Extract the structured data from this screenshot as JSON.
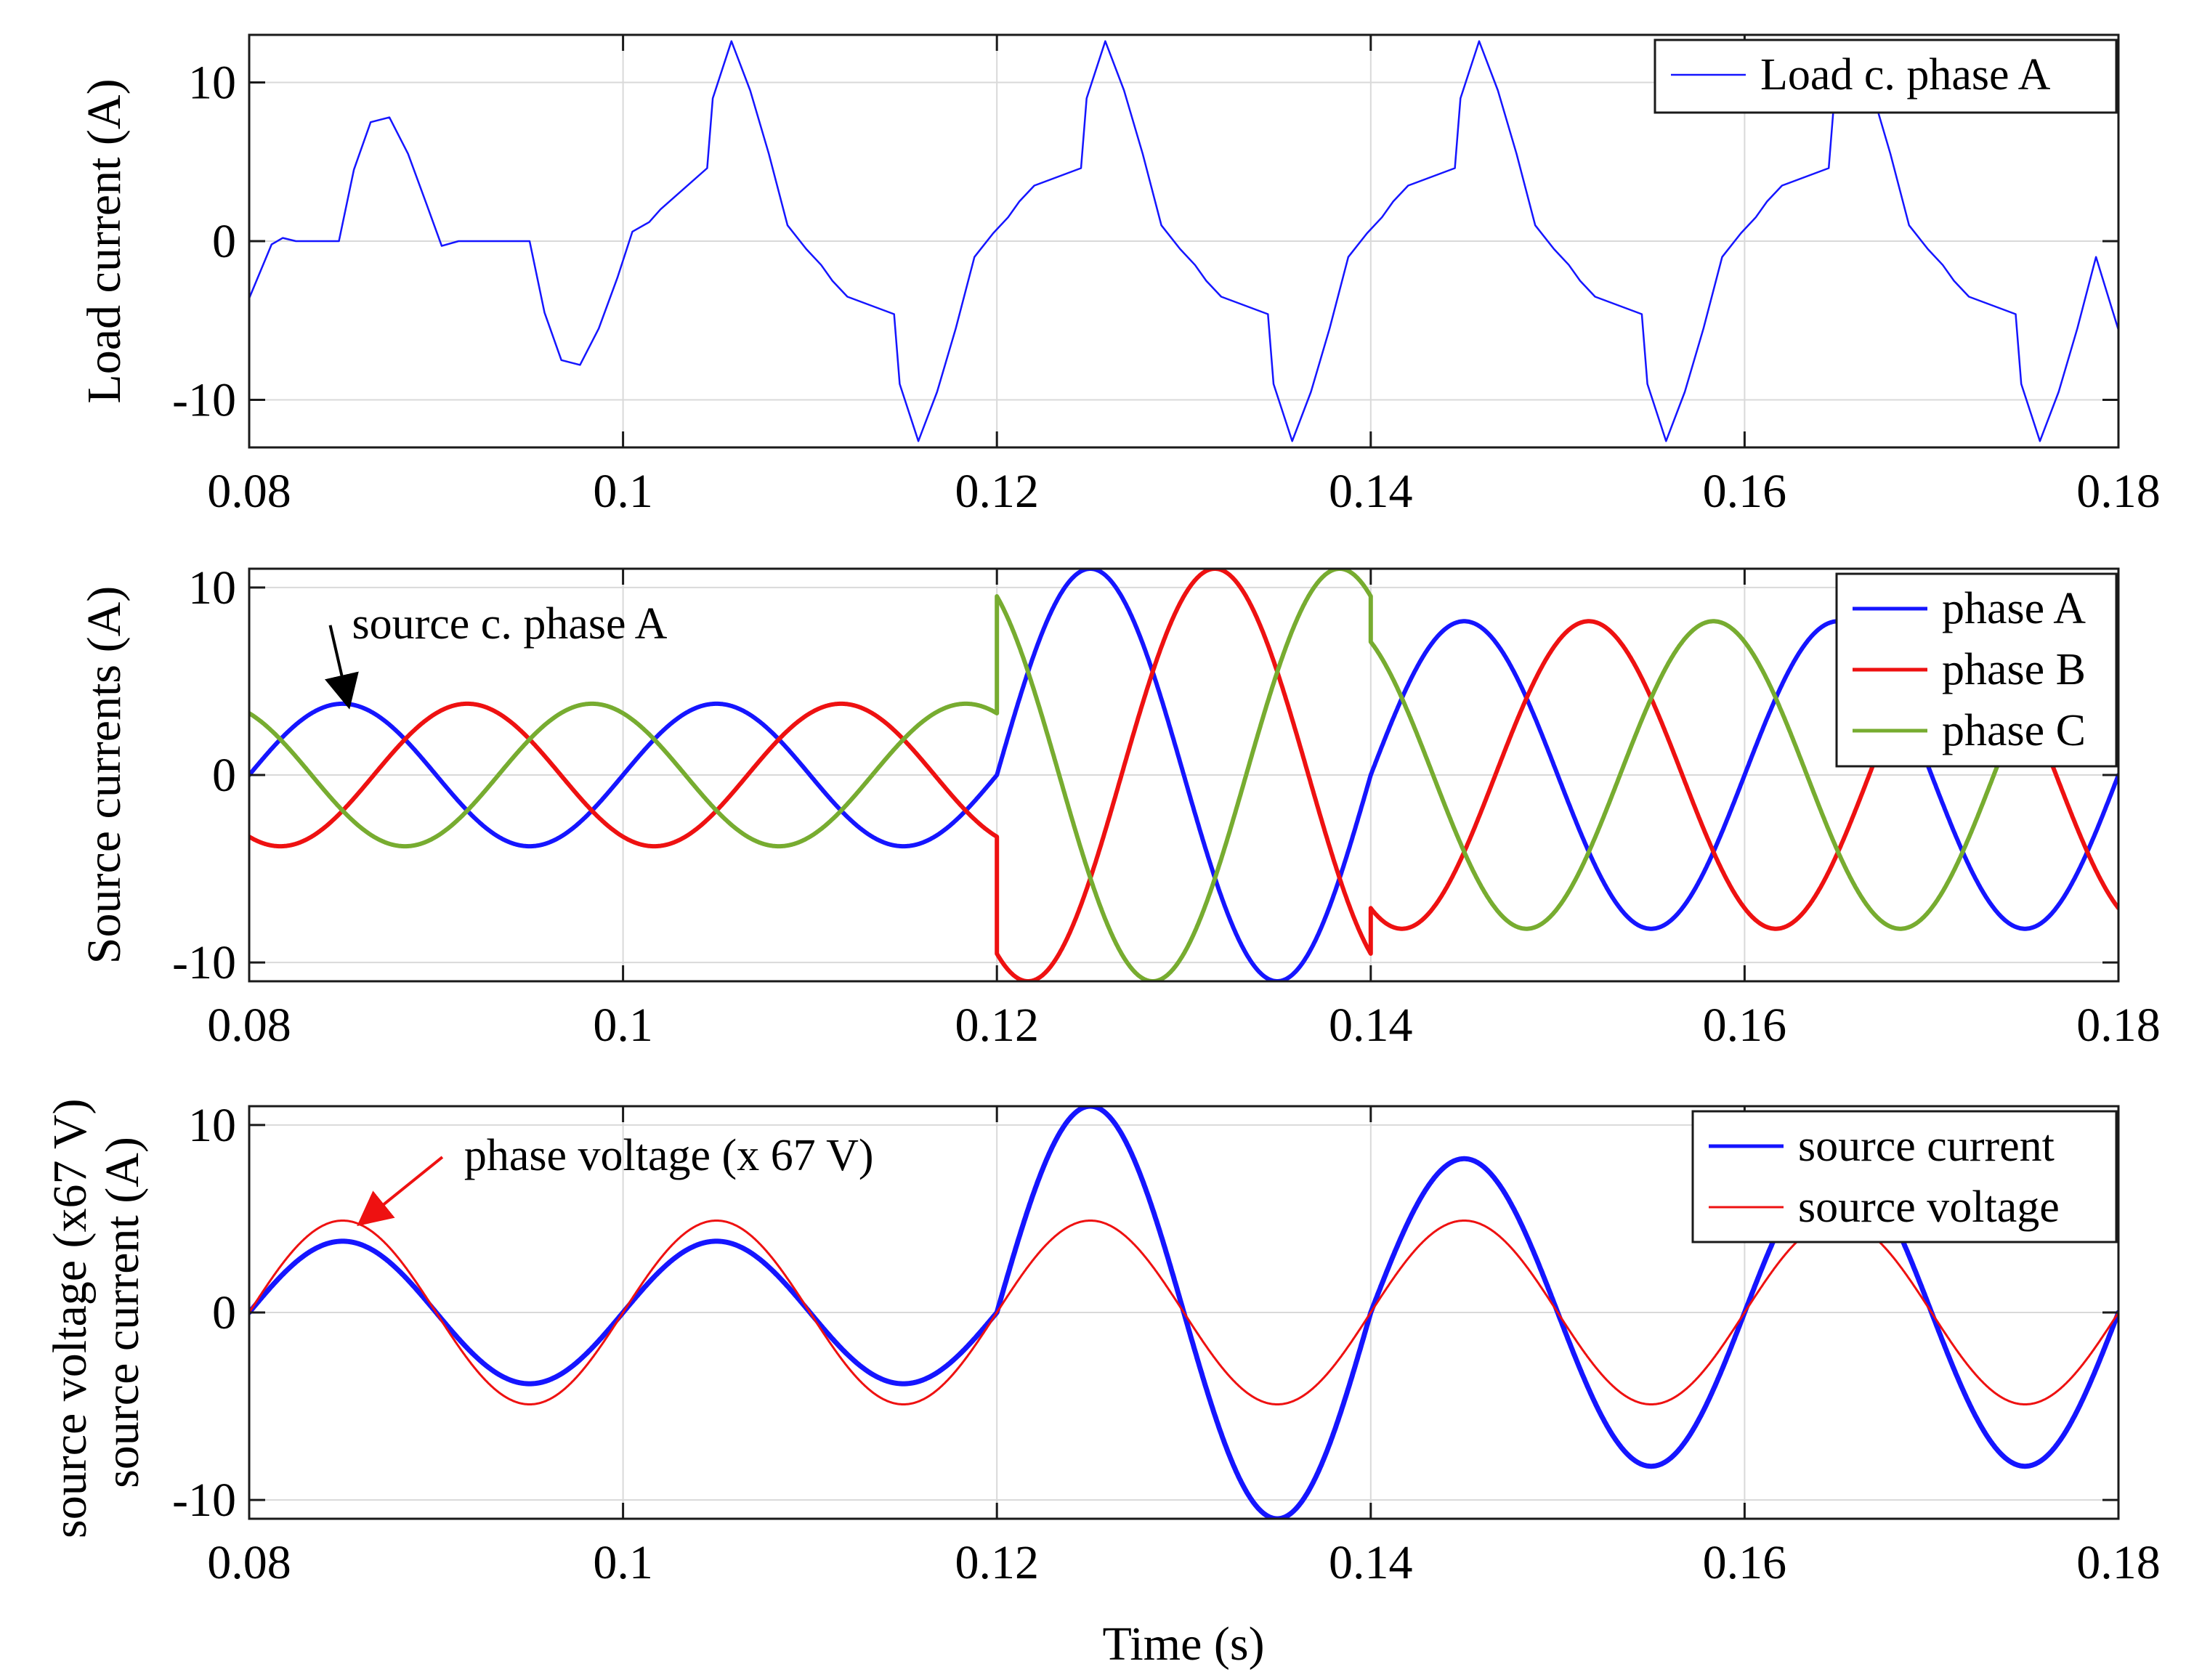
{
  "figure": {
    "xlabel": "Time (s)"
  },
  "chart_data": [
    {
      "type": "line",
      "ylabel": "Load current (A)",
      "xlim": [
        0.08,
        0.18
      ],
      "ylim": [
        -13,
        13
      ],
      "xticks": [
        0.08,
        0.1,
        0.12,
        0.14,
        0.16,
        0.18
      ],
      "xtick_labels": [
        "0.08",
        "0.1",
        "0.12",
        "0.14",
        "0.16",
        "0.18"
      ],
      "yticks": [
        -10,
        0,
        10
      ],
      "ytick_labels": [
        "-10",
        "0",
        "10"
      ],
      "grid": true,
      "legend_position": "top-right",
      "series": [
        {
          "name": "Load c. phase A",
          "color": "#1515ff",
          "line_width": 2.5,
          "x": [
            0.08,
            0.0812,
            0.0818,
            0.0825,
            0.0848,
            0.0856,
            0.0865,
            0.0875,
            0.0885,
            0.0895,
            0.0903,
            0.0912,
            0.092,
            0.0926,
            0.095,
            0.0958,
            0.0967,
            0.0977,
            0.0987,
            0.0997,
            0.1005,
            0.1014,
            0.102,
            0.1045,
            0.1048,
            0.1058,
            0.1068,
            0.1078,
            0.1088,
            0.1098,
            0.1106,
            0.1112,
            0.112,
            0.1145,
            0.1148,
            0.1158,
            0.1168,
            0.1178,
            0.1188,
            0.1198,
            0.1206,
            0.1212,
            0.122,
            0.1245,
            0.1248,
            0.1258,
            0.1268,
            0.1278,
            0.1288,
            0.1298,
            0.1306,
            0.1312,
            0.132,
            0.1345,
            0.1348,
            0.1358,
            0.1368,
            0.1378,
            0.1388,
            0.1398,
            0.1406,
            0.1412,
            0.142,
            0.1445,
            0.1448,
            0.1458,
            0.1468,
            0.1478,
            0.1488,
            0.1498,
            0.1506,
            0.1512,
            0.152,
            0.1545,
            0.1548,
            0.1558,
            0.1568,
            0.1578,
            0.1588,
            0.1598,
            0.1606,
            0.1612,
            0.162,
            0.1645,
            0.1648,
            0.1658,
            0.1668,
            0.1678,
            0.1688,
            0.1698,
            0.1706,
            0.1712,
            0.172,
            0.1745,
            0.1748,
            0.1758,
            0.1768,
            0.1778,
            0.1788,
            0.18
          ],
          "y": [
            -3.6,
            -0.2,
            0.2,
            0.0,
            0.0,
            4.5,
            7.5,
            7.8,
            5.5,
            2.3,
            -0.3,
            0.0,
            0.0,
            0.0,
            0.0,
            -4.5,
            -7.5,
            -7.8,
            -5.5,
            -2.3,
            0.6,
            1.2,
            2.0,
            4.6,
            9.0,
            12.6,
            9.5,
            5.5,
            1.0,
            -0.5,
            -1.5,
            -2.5,
            -3.5,
            -4.6,
            -9.0,
            -12.6,
            -9.5,
            -5.5,
            -1.0,
            0.5,
            1.5,
            2.5,
            3.5,
            4.6,
            9.0,
            12.6,
            9.5,
            5.5,
            1.0,
            -0.5,
            -1.5,
            -2.5,
            -3.5,
            -4.6,
            -9.0,
            -12.6,
            -9.5,
            -5.5,
            -1.0,
            0.5,
            1.5,
            2.5,
            3.5,
            4.6,
            9.0,
            12.6,
            9.5,
            5.5,
            1.0,
            -0.5,
            -1.5,
            -2.5,
            -3.5,
            -4.6,
            -9.0,
            -12.6,
            -9.5,
            -5.5,
            -1.0,
            0.5,
            1.5,
            2.5,
            3.5,
            4.6,
            9.0,
            12.6,
            9.5,
            5.5,
            1.0,
            -0.5,
            -1.5,
            -2.5,
            -3.5,
            -4.6,
            -9.0,
            -12.6,
            -9.5,
            -5.5,
            -1.0,
            -5.6
          ]
        }
      ],
      "annotations": []
    },
    {
      "type": "line",
      "ylabel": "Source currents (A)",
      "xlim": [
        0.08,
        0.18
      ],
      "ylim": [
        -11,
        11
      ],
      "xticks": [
        0.08,
        0.1,
        0.12,
        0.14,
        0.16,
        0.18
      ],
      "xtick_labels": [
        "0.08",
        "0.1",
        "0.12",
        "0.14",
        "0.16",
        "0.18"
      ],
      "yticks": [
        -10,
        0,
        10
      ],
      "ytick_labels": [
        "-10",
        "0",
        "10"
      ],
      "grid": true,
      "legend_position": "top-right",
      "series": [
        {
          "name": "phase A",
          "color": "#1515ff",
          "line_width": 6,
          "frequency_hz": 50,
          "phase_deg": 0,
          "amplitude_segments": [
            {
              "x_start": 0.08,
              "x_end": 0.12,
              "amplitude": 3.8
            },
            {
              "x_start": 0.12,
              "x_end": 0.14,
              "amplitude": 11.0
            },
            {
              "x_start": 0.14,
              "x_end": 0.18,
              "amplitude": 8.2
            }
          ]
        },
        {
          "name": "phase B",
          "color": "#ee1111",
          "line_width": 6,
          "frequency_hz": 50,
          "phase_deg": -120,
          "amplitude_segments": [
            {
              "x_start": 0.08,
              "x_end": 0.12,
              "amplitude": 3.8
            },
            {
              "x_start": 0.12,
              "x_end": 0.14,
              "amplitude": 11.0
            },
            {
              "x_start": 0.14,
              "x_end": 0.18,
              "amplitude": 8.2
            }
          ]
        },
        {
          "name": "phase C",
          "color": "#77ac30",
          "line_width": 6,
          "frequency_hz": 50,
          "phase_deg": 120,
          "amplitude_segments": [
            {
              "x_start": 0.08,
              "x_end": 0.12,
              "amplitude": 3.8
            },
            {
              "x_start": 0.12,
              "x_end": 0.14,
              "amplitude": 11.0
            },
            {
              "x_start": 0.14,
              "x_end": 0.18,
              "amplitude": 8.2
            }
          ]
        }
      ],
      "annotations": [
        {
          "text": "source c. phase A",
          "color": "#000000",
          "label_at": [
            0.0855,
            7.6
          ],
          "arrow_to": [
            0.0853,
            3.8
          ]
        }
      ]
    },
    {
      "type": "line",
      "ylabel": "source voltage (x67 V)\nsource current (A)",
      "ylabel_lines": [
        "source voltage (x67 V)",
        "source current (A)"
      ],
      "xlim": [
        0.08,
        0.18
      ],
      "ylim": [
        -11,
        11
      ],
      "xticks": [
        0.08,
        0.1,
        0.12,
        0.14,
        0.16,
        0.18
      ],
      "xtick_labels": [
        "0.08",
        "0.1",
        "0.12",
        "0.14",
        "0.16",
        "0.18"
      ],
      "yticks": [
        -10,
        0,
        10
      ],
      "ytick_labels": [
        "-10",
        "0",
        "10"
      ],
      "grid": true,
      "legend_position": "top-right",
      "series": [
        {
          "name": "source current",
          "color": "#1515ff",
          "line_width": 7,
          "frequency_hz": 50,
          "phase_deg": 0,
          "amplitude_segments": [
            {
              "x_start": 0.08,
              "x_end": 0.12,
              "amplitude": 3.8
            },
            {
              "x_start": 0.12,
              "x_end": 0.14,
              "amplitude": 11.0
            },
            {
              "x_start": 0.14,
              "x_end": 0.18,
              "amplitude": 8.2
            }
          ]
        },
        {
          "name": "source voltage",
          "color": "#ee1111",
          "line_width": 3,
          "frequency_hz": 50,
          "phase_deg": 0,
          "amplitude_segments": [
            {
              "x_start": 0.08,
              "x_end": 0.18,
              "amplitude": 4.9
            }
          ]
        }
      ],
      "annotations": [
        {
          "text": "phase voltage (x 67 V)",
          "color": "#ee1111",
          "label_at": [
            0.0915,
            7.9
          ],
          "arrow_to": [
            0.086,
            4.8
          ]
        }
      ]
    }
  ]
}
